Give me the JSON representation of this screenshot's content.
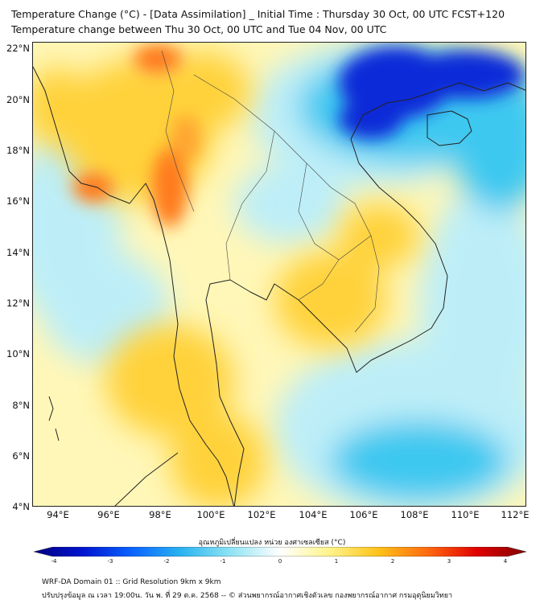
{
  "header": {
    "title_line1": "Temperature Change (°C) - [Data Assimilation] _ Initial Time : Thursday 30 Oct, 00 UTC FCST+120",
    "title_line2": "Temperature change between Thu 30 Oct, 00 UTC and Tue 04 Nov, 00 UTC"
  },
  "map": {
    "lat_labels": [
      "22°N",
      "20°N",
      "18°N",
      "16°N",
      "14°N",
      "12°N",
      "10°N",
      "8°N",
      "6°N",
      "4°N"
    ],
    "lon_labels": [
      "94°E",
      "96°E",
      "98°E",
      "100°E",
      "102°E",
      "104°E",
      "106°E",
      "108°E",
      "110°E",
      "112°E"
    ],
    "field_colors": {
      "base_warm": "#fff7b8",
      "warm": "#ffd23a",
      "hot": "#ff7a1a",
      "cool": "#bdeef8",
      "cold": "#3cc8f0",
      "very_cold": "#0a2ad8",
      "coast": "#222222"
    }
  },
  "colorbar": {
    "title": "อุณหภูมิเปลี่ยนแปลง หน่วย องศาเซลเซียส (°C)",
    "ticks": [
      "-4",
      "-3",
      "-2",
      "-1",
      "0",
      "1",
      "2",
      "3",
      "4"
    ],
    "range": [
      -4,
      4
    ],
    "stops": [
      "#000080",
      "#0014d0",
      "#0a64ff",
      "#2ab4f0",
      "#90e4f4",
      "#ffffff",
      "#fff48a",
      "#ffc21a",
      "#ff6a10",
      "#e00000",
      "#800000"
    ]
  },
  "footer": {
    "line1": "WRF-DA Domain 01 :: Grid Resolution 9km x 9km",
    "line2": "ปรับปรุงข้อมูล ณ เวลา 19:00น. วัน พ. ที่ 29 ต.ค. 2568 -- © ส่วนพยากรณ์อากาศเชิงตัวเลข กองพยากรณ์อากาศ กรมอุตุนิยมวิทยา"
  }
}
